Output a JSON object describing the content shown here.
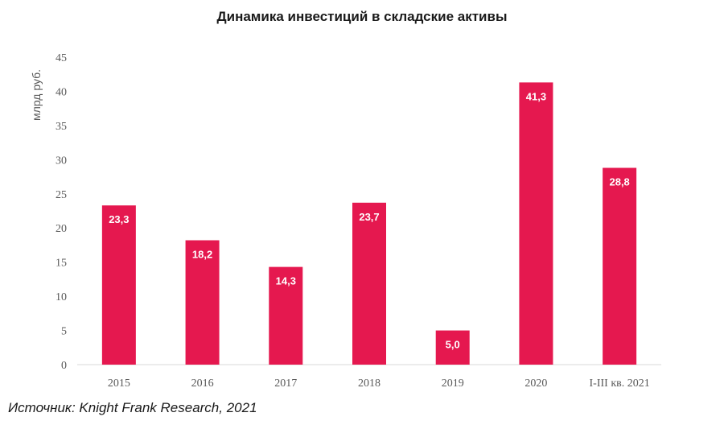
{
  "title": "Динамика инвестиций в складские активы",
  "source_note": "Источник: Knight Frank Research, 2021",
  "colors": {
    "bar": "#e5184f",
    "label": "#ffffff",
    "axis": "#595959",
    "baseline": "#d9d9d9"
  },
  "chart_data": {
    "type": "bar",
    "title": "Динамика инвестиций в складские активы",
    "xlabel": "",
    "ylabel": "млрд руб.",
    "categories": [
      "2015",
      "2016",
      "2017",
      "2018",
      "2019",
      "2020",
      "I-III кв. 2021"
    ],
    "values": [
      23.3,
      18.2,
      14.3,
      23.7,
      5.0,
      41.3,
      28.8
    ],
    "value_labels": [
      "23,3",
      "18,2",
      "14,3",
      "23,7",
      "5,0",
      "41,3",
      "28,8"
    ],
    "ylim": [
      0,
      45
    ],
    "yticks": [
      0,
      5,
      10,
      15,
      20,
      25,
      30,
      35,
      40,
      45
    ],
    "grid": false,
    "legend": "none"
  }
}
